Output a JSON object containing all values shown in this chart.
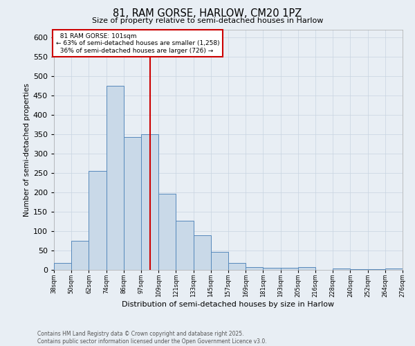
{
  "title": "81, RAM GORSE, HARLOW, CM20 1PZ",
  "subtitle": "Size of property relative to semi-detached houses in Harlow",
  "xlabel": "Distribution of semi-detached houses by size in Harlow",
  "ylabel": "Number of semi-detached properties",
  "bins": [
    "38sqm",
    "50sqm",
    "62sqm",
    "74sqm",
    "86sqm",
    "97sqm",
    "109sqm",
    "121sqm",
    "133sqm",
    "145sqm",
    "157sqm",
    "169sqm",
    "181sqm",
    "193sqm",
    "205sqm",
    "216sqm",
    "228sqm",
    "240sqm",
    "252sqm",
    "264sqm",
    "276sqm"
  ],
  "values": [
    18,
    75,
    255,
    475,
    343,
    349,
    197,
    127,
    89,
    47,
    18,
    8,
    6,
    6,
    8,
    0,
    4,
    2,
    1,
    3
  ],
  "property_label": "81 RAM GORSE: 101sqm",
  "pct_smaller": 63,
  "count_smaller": 1258,
  "pct_larger": 36,
  "count_larger": 726,
  "bar_color": "#c9d9e8",
  "bar_edge_color": "#5588bb",
  "vline_color": "#cc0000",
  "annotation_box_color": "#cc0000",
  "grid_color": "#c8d4e0",
  "background_color": "#e8eef4",
  "footer_text": "Contains HM Land Registry data © Crown copyright and database right 2025.\nContains public sector information licensed under the Open Government Licence v3.0.",
  "ylim": [
    0,
    620
  ],
  "yticks": [
    0,
    50,
    100,
    150,
    200,
    250,
    300,
    350,
    400,
    450,
    500,
    550,
    600
  ]
}
